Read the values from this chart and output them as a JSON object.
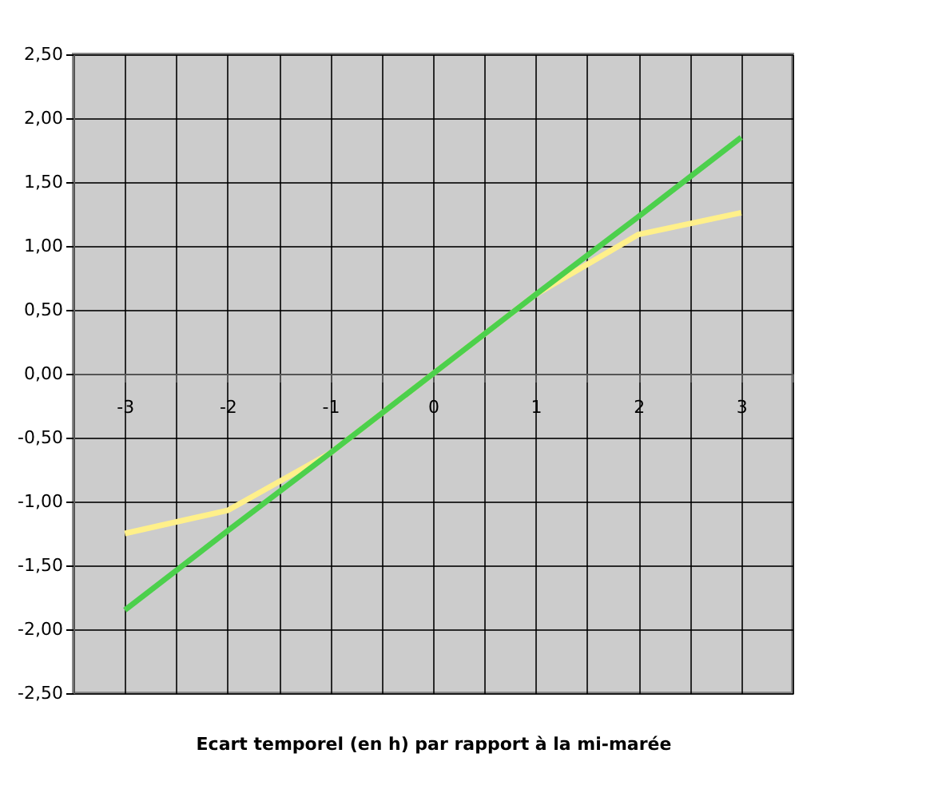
{
  "chart_data": {
    "type": "line",
    "xlabel": "Ecart temporel (en h) par rapport à la mi-marée",
    "x": [
      -3,
      -2,
      -1,
      0,
      1,
      2,
      3
    ],
    "series": [
      {
        "color": "#fff08a",
        "values": [
          -1.25,
          -1.07,
          -0.62,
          0,
          0.62,
          1.09,
          1.26
        ]
      },
      {
        "color": "#4cd04c",
        "values": [
          -1.85,
          -1.23,
          -0.62,
          0,
          0.62,
          1.23,
          1.85
        ]
      }
    ],
    "xlim": [
      -3.5,
      3.5
    ],
    "xticks": [
      {
        "value": -3.5,
        "label": null
      },
      -3,
      {
        "value": -2.5,
        "label": null
      },
      -2,
      {
        "value": -1.5,
        "label": null
      },
      -1,
      {
        "value": -0.5,
        "label": null
      },
      0,
      {
        "value": 0.5,
        "label": null
      },
      1,
      {
        "value": 1.5,
        "label": null
      },
      2,
      {
        "value": 2.5,
        "label": null
      },
      3,
      {
        "value": 3.5,
        "label": null
      }
    ],
    "ylim": [
      -2.5,
      2.5
    ],
    "yticks": [
      {
        "value": -2.5,
        "label": "-2,50"
      },
      {
        "value": -2.0,
        "label": "-2,00"
      },
      {
        "value": -1.5,
        "label": "-1,50"
      },
      {
        "value": -1.0,
        "label": "-1,00"
      },
      {
        "value": -0.5,
        "label": "-0,50"
      },
      {
        "value": 0,
        "label": "0,00"
      },
      {
        "value": 0.5,
        "label": "0,50"
      },
      {
        "value": 1.0,
        "label": "1,00"
      },
      {
        "value": 1.5,
        "label": "1,50"
      },
      {
        "value": 2.0,
        "label": "2,00"
      },
      {
        "value": 2.5,
        "label": "2,50"
      }
    ],
    "grid": true,
    "marker": "none",
    "line_style": "solid"
  }
}
